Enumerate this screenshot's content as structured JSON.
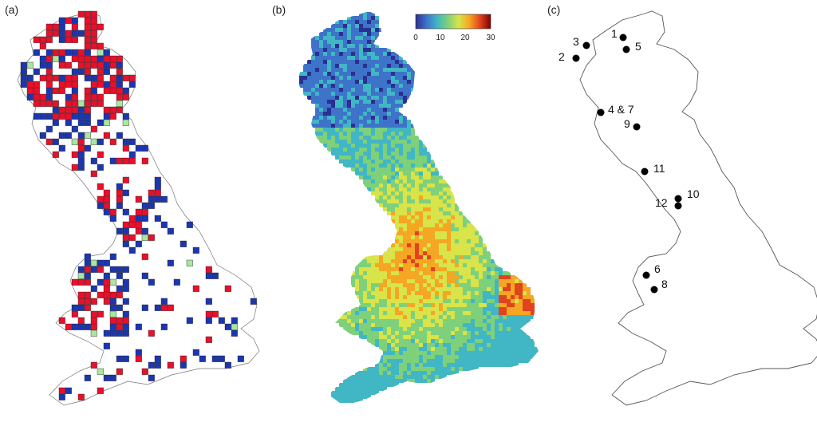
{
  "panels": {
    "a": {
      "label": "(a)"
    },
    "b": {
      "label": "(b)"
    },
    "c": {
      "label": "(c)"
    }
  },
  "colors": {
    "red": "#e8102a",
    "blue": "#1c36b0",
    "green": "#a9e6a0",
    "outline": "#777777",
    "dot": "#000000"
  },
  "colorbar": {
    "ticks": [
      "0",
      "10",
      "20",
      "30"
    ],
    "colors": [
      "#2b2f8f",
      "#3d73c8",
      "#41b6c4",
      "#7fd07a",
      "#d8e44a",
      "#f5a623",
      "#e0431e",
      "#7a0000"
    ]
  },
  "sites": [
    {
      "label": "1"
    },
    {
      "label": "5"
    },
    {
      "label": "3"
    },
    {
      "label": "2"
    },
    {
      "label": "4 & 7"
    },
    {
      "label": "9"
    },
    {
      "label": "11"
    },
    {
      "label": "10"
    },
    {
      "label": "12"
    },
    {
      "label": "6"
    },
    {
      "label": "8"
    }
  ]
}
